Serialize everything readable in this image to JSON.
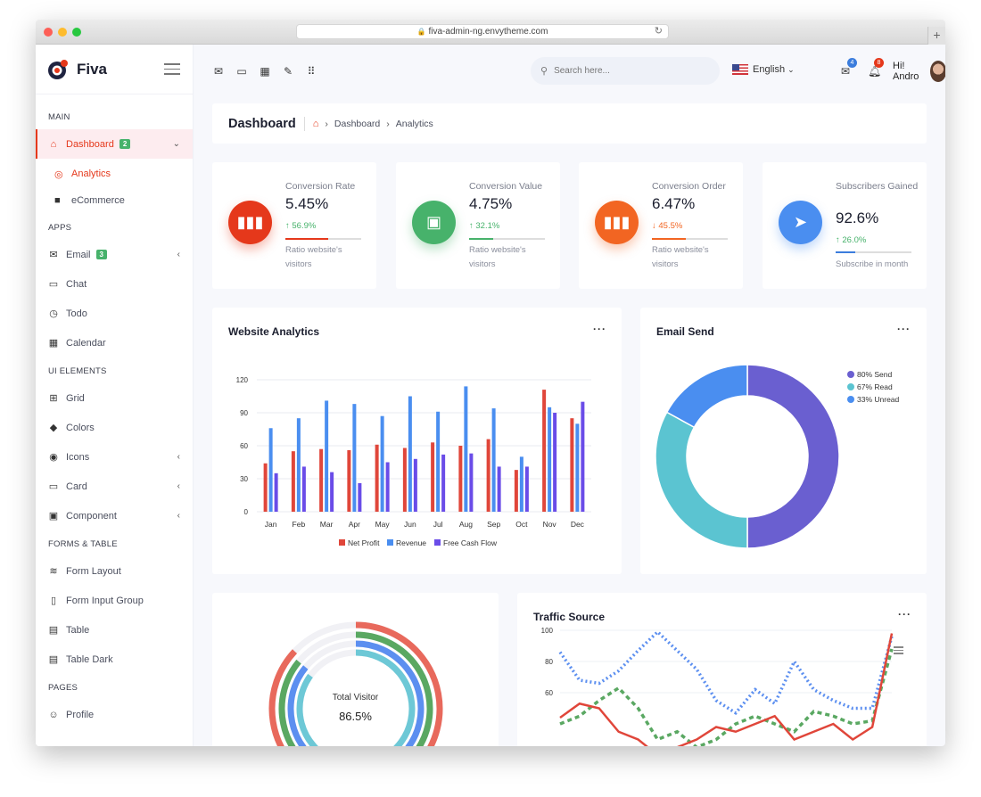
{
  "browser": {
    "url": "fiva-admin-ng.envytheme.com"
  },
  "brand": {
    "name": "Fiva"
  },
  "sidebar": {
    "sections": {
      "main": "MAIN",
      "apps": "APPS",
      "ui": "UI ELEMENTS",
      "forms": "FORMS & TABLE",
      "pages": "PAGES"
    },
    "dashboard": {
      "label": "Dashboard",
      "badge": "2"
    },
    "sub": {
      "analytics": "Analytics",
      "ecommerce": "eCommerce"
    },
    "email": {
      "label": "Email",
      "badge": "3"
    },
    "chat": "Chat",
    "todo": "Todo",
    "calendar": "Calendar",
    "grid": "Grid",
    "colors": "Colors",
    "icons": "Icons",
    "card": "Card",
    "component": "Component",
    "form_layout": "Form Layout",
    "form_input_group": "Form Input Group",
    "table": "Table",
    "table_dark": "Table Dark",
    "profile": "Profile"
  },
  "topbar": {
    "search_placeholder": "Search here...",
    "language": "English",
    "mail_count": "4",
    "notif_count": "8",
    "greeting": "Hi! Andro"
  },
  "breadcrumb": {
    "title": "Dashboard",
    "items": [
      "Dashboard",
      "Analytics"
    ]
  },
  "stats": [
    {
      "label": "Conversion Rate",
      "value": "5.45%",
      "trend": "↑ 56.9%",
      "trend_color": "#47b26b",
      "progress": 0.56,
      "bar_color": "#e5381b",
      "note": "Ratio website's visitors",
      "color": "#e5381b"
    },
    {
      "label": "Conversion Value",
      "value": "4.75%",
      "trend": "↑ 32.1%",
      "trend_color": "#47b26b",
      "progress": 0.32,
      "bar_color": "#47b26b",
      "note": "Ratio website's visitors",
      "color": "#47b26b"
    },
    {
      "label": "Conversion Order",
      "value": "6.47%",
      "trend": "↓ 45.5%",
      "trend_color": "#f26522",
      "progress": 0.45,
      "bar_color": "#f26522",
      "note": "Ratio website's visitors",
      "color": "#f26522"
    },
    {
      "label": "Subscribers Gained",
      "value": "92.6%",
      "trend": "↑ 26.0%",
      "trend_color": "#47b26b",
      "progress": 0.26,
      "bar_color": "#3b7ddd",
      "note": "Subscribe in month",
      "color": "#4a8ef0"
    }
  ],
  "panels": {
    "website_analytics": "Website Analytics",
    "email_send": "Email Send",
    "traffic_source": "Traffic Source",
    "total_visitor_label": "Total Visitor",
    "total_visitor_value": "86.5%"
  },
  "chart_data": [
    {
      "type": "bar",
      "categories": [
        "Jan",
        "Feb",
        "Mar",
        "Apr",
        "May",
        "Jun",
        "Jul",
        "Aug",
        "Sep",
        "Oct",
        "Nov",
        "Dec"
      ],
      "series": [
        {
          "name": "Net Profit",
          "color": "#e0463a",
          "values": [
            44,
            55,
            57,
            56,
            61,
            58,
            63,
            60,
            66,
            38,
            111,
            85
          ]
        },
        {
          "name": "Revenue",
          "color": "#4a8ef0",
          "values": [
            76,
            85,
            101,
            98,
            87,
            105,
            91,
            114,
            94,
            50,
            95,
            80
          ]
        },
        {
          "name": "Free Cash Flow",
          "color": "#6a4ce8",
          "values": [
            35,
            41,
            36,
            26,
            45,
            48,
            52,
            53,
            41,
            41,
            90,
            100
          ]
        }
      ],
      "y_ticks": [
        0,
        30,
        60,
        90,
        120
      ],
      "ylim": [
        0,
        120
      ],
      "grid": true,
      "legend": "bottom"
    },
    {
      "type": "pie",
      "labels": [
        "80% Send",
        "67% Read",
        "33% Unread"
      ],
      "values": [
        50,
        33,
        17
      ],
      "colors": [
        "#6a5fd0",
        "#5bc4d1",
        "#4a8ef0"
      ],
      "legend": "top-right"
    },
    {
      "type": "pie",
      "labels": [
        "Total Visitor"
      ],
      "rings": [
        0.87,
        0.86,
        0.86,
        0.85
      ],
      "colors": [
        "#e8695c",
        "#5aa862",
        "#5c8ff0",
        "#6dc8d6"
      ]
    },
    {
      "type": "line",
      "y_ticks": [
        60,
        80,
        100
      ],
      "series": [
        {
          "color": "#5c8ff0",
          "style": "dotted",
          "values": [
            86,
            68,
            66,
            74,
            87,
            99,
            87,
            75,
            55,
            47,
            62,
            53,
            80,
            62,
            55,
            50,
            50,
            96
          ]
        },
        {
          "color": "#5aa862",
          "style": "dashed",
          "values": [
            40,
            45,
            55,
            63,
            50,
            30,
            35,
            25,
            30,
            40,
            45,
            40,
            35,
            48,
            45,
            40,
            42,
            88
          ]
        },
        {
          "color": "#e0463a",
          "style": "solid",
          "values": [
            44,
            53,
            50,
            35,
            30,
            20,
            25,
            30,
            38,
            35,
            40,
            45,
            30,
            35,
            40,
            30,
            38,
            98
          ]
        }
      ]
    }
  ]
}
